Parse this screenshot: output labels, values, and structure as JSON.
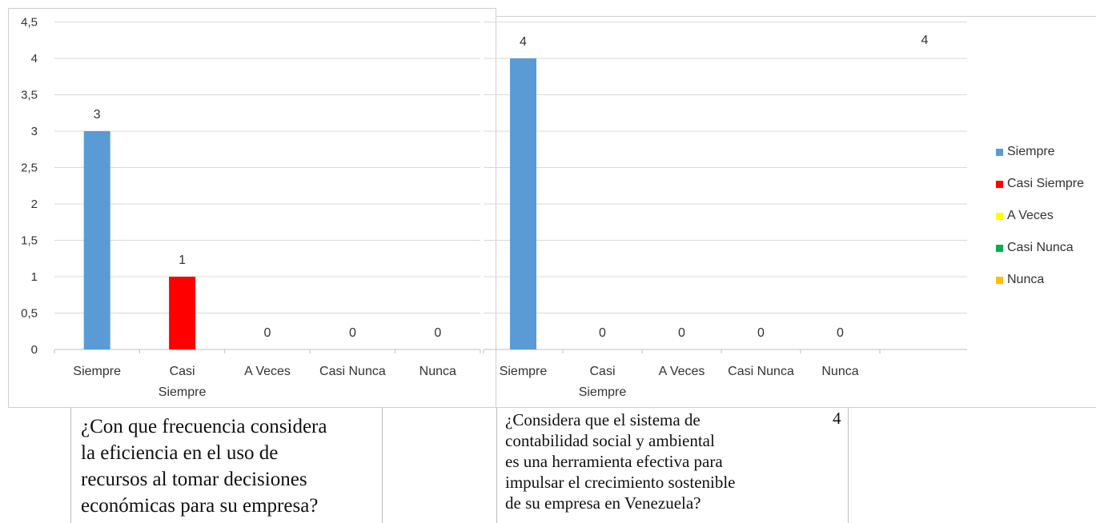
{
  "chart_data": [
    {
      "type": "bar",
      "categories": [
        "Siempre",
        "Casi\nSiempre",
        "A Veces",
        "Casi Nunca",
        "Nunca"
      ],
      "values": [
        3,
        1,
        0,
        0,
        0
      ],
      "colors": [
        "#5b9bd5",
        "#ff0000",
        "#ffff00",
        "#00b050",
        "#ffc000"
      ],
      "ylim": [
        0,
        4.5
      ],
      "yticks": [
        "0",
        "0,5",
        "1",
        "1,5",
        "2",
        "2,5",
        "3",
        "3,5",
        "4",
        "4,5"
      ],
      "grid": true,
      "data_labels": [
        "3",
        "1",
        "0",
        "0",
        "0"
      ]
    },
    {
      "type": "bar",
      "categories": [
        "Siempre",
        "Casi\nSiempre",
        "A Veces",
        "Casi Nunca",
        "Nunca"
      ],
      "values": [
        4,
        0,
        0,
        0,
        0
      ],
      "colors": [
        "#5b9bd5",
        "#ff0000",
        "#ffff00",
        "#00b050",
        "#ffc000"
      ],
      "ylim": [
        0,
        4.5
      ],
      "grid": true,
      "data_labels": [
        "4",
        "0",
        "0",
        "0",
        "0"
      ],
      "extra_label": "4"
    }
  ],
  "legend": {
    "position": "right",
    "items": [
      {
        "label": "Siempre",
        "color": "#5b9bd5"
      },
      {
        "label": "Casi Siempre",
        "color": "#ff0000"
      },
      {
        "label": "A Veces",
        "color": "#ffff00"
      },
      {
        "label": "Casi Nunca",
        "color": "#00b050"
      },
      {
        "label": "Nunca",
        "color": "#ffc000"
      }
    ]
  },
  "captions": {
    "left": "¿Con que frecuencia considera\nla eficiencia en el uso de\nrecursos al tomar decisiones\neconómicas para su empresa?",
    "right": "¿Considera que el sistema de\ncontabilidad social y ambiental\nes una herramienta efectiva para\nimpulsar el crecimiento sostenible\nde su empresa en Venezuela?",
    "right_number": "4"
  }
}
